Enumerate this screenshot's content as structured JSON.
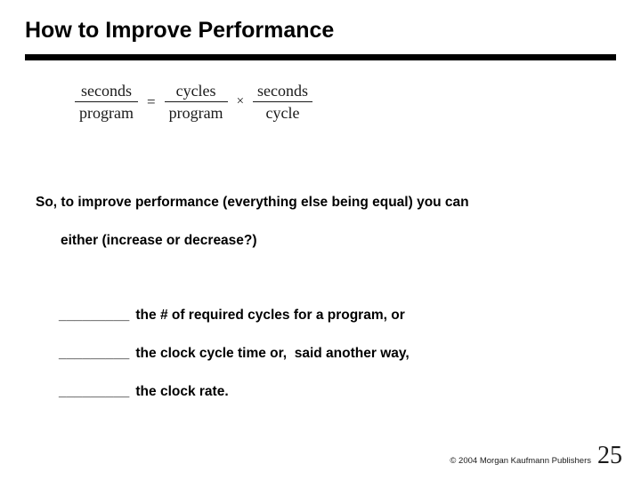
{
  "slide": {
    "title": "How to Improve Performance",
    "formula": {
      "fractions": [
        {
          "numerator": "seconds",
          "denominator": "program"
        },
        {
          "numerator": "cycles",
          "denominator": "program"
        },
        {
          "numerator": "seconds",
          "denominator": "cycle"
        }
      ],
      "equals": "=",
      "times": "×"
    },
    "body": {
      "intro": "So, to improve performance (everything else being equal) you can",
      "sub_intro": "either (increase or decrease?)",
      "blank": "_________",
      "items": [
        "the # of required cycles for a program, or",
        "the clock cycle time or,  said another way,",
        "the clock rate."
      ]
    },
    "footer": {
      "copyright": "© 2004 Morgan Kaufmann Publishers",
      "page_number": "25"
    }
  },
  "colors": {
    "background": "#ffffff",
    "text": "#000000",
    "title_bar": "#000000"
  }
}
